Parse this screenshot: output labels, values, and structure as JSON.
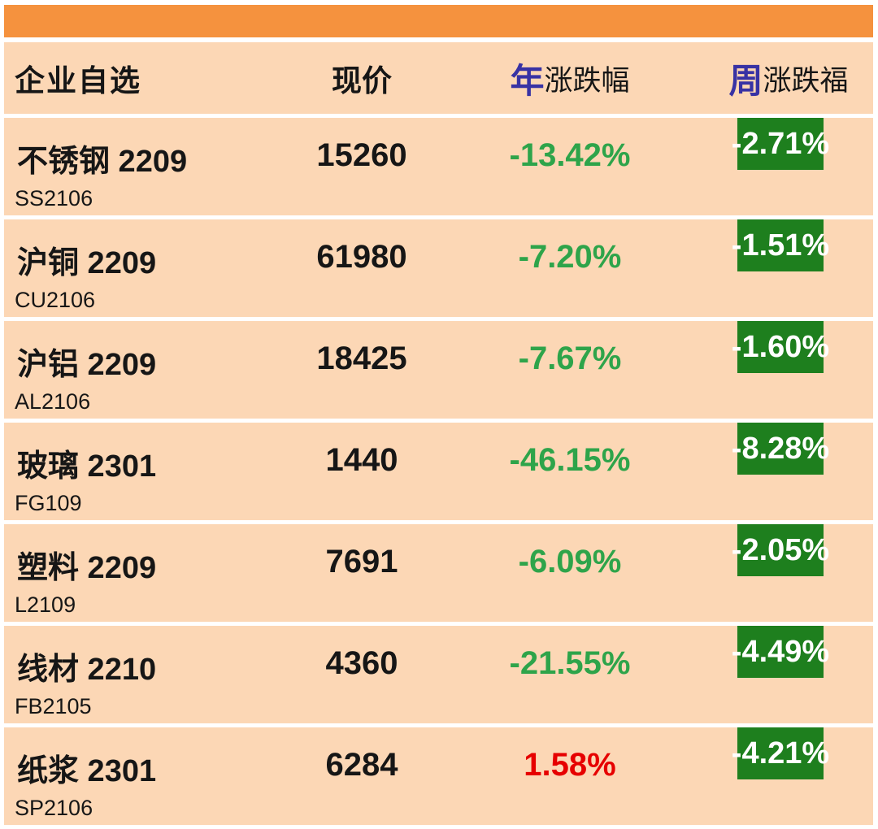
{
  "chart_data": {
    "type": "table",
    "columns": [
      {
        "label": "企业自选"
      },
      {
        "label": "现价"
      },
      {
        "label": "年涨跌幅",
        "prefix": "年",
        "suffix": "涨跌幅"
      },
      {
        "label": "周涨跌福",
        "prefix": "周",
        "suffix": "涨跌福"
      }
    ],
    "rows": [
      {
        "name": "不锈钢 2209",
        "code": "SS2106",
        "price": "15260",
        "year_change": "-13.42%",
        "year_direction": "down",
        "week_change": "-2.71%"
      },
      {
        "name": "沪铜 2209",
        "code": "CU2106",
        "price": "61980",
        "year_change": "-7.20%",
        "year_direction": "down",
        "week_change": "-1.51%"
      },
      {
        "name": "沪铝 2209",
        "code": "AL2106",
        "price": "18425",
        "year_change": "-7.67%",
        "year_direction": "down",
        "week_change": "-1.60%"
      },
      {
        "name": "玻璃 2301",
        "code": "FG109",
        "price": "1440",
        "year_change": "-46.15%",
        "year_direction": "down",
        "week_change": "-8.28%"
      },
      {
        "name": "塑料 2209",
        "code": "L2109",
        "price": "7691",
        "year_change": "-6.09%",
        "year_direction": "down",
        "week_change": "-2.05%"
      },
      {
        "name": "线材 2210",
        "code": "FB2105",
        "price": "4360",
        "year_change": "-21.55%",
        "year_direction": "down",
        "week_change": "-4.49%"
      },
      {
        "name": "纸浆 2301",
        "code": "SP2106",
        "price": "6284",
        "year_change": "1.58%",
        "year_direction": "up",
        "week_change": "-4.21%"
      }
    ]
  },
  "colors": {
    "top_bar_orange": "#F5923E",
    "row_peach": "#FCD7B5",
    "week_badge_green": "#1E7F1E",
    "year_down_green": "#2EA44A",
    "year_up_red": "#E60000",
    "header_accent_blue": "#3832A4",
    "text_black": "#161616",
    "badge_text_white": "#FFFFFF"
  }
}
